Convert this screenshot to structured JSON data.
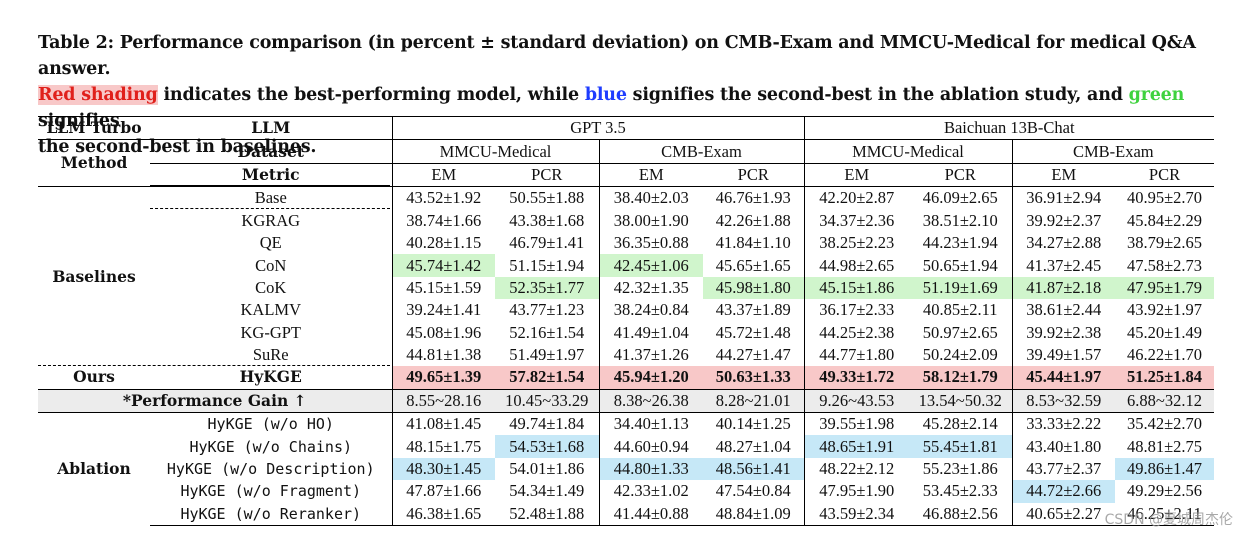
{
  "caption": {
    "line1": "Table 2: Performance comparison (in percent ± standard deviation) on CMB-Exam and MMCU-Medical for medical Q&A answer.",
    "red_word": "Red shading",
    "line2a": " indicates the best-performing model, while ",
    "blue_word": "blue",
    "line2b": " signifies the second-best in the ablation study, and ",
    "green_word": "green",
    "line2c": " signifies",
    "line3": "the second-best in baselines."
  },
  "header": {
    "llm_turbo": "LLM Turbo",
    "llm": "LLM",
    "gpt": "GPT 3.5",
    "baichuan": "Baichuan 13B-Chat",
    "method": "Method",
    "dataset": "Dataset",
    "metric": "Metric",
    "mmcu": "MMCU-Medical",
    "cmb": "CMB-Exam",
    "em": "EM",
    "pcr": "PCR"
  },
  "groups": {
    "baselines": "Baselines",
    "ours": "Ours",
    "gain": "*Performance Gain ↑",
    "ablation": "Ablation"
  },
  "rows": {
    "base": {
      "name": "Base",
      "v": [
        "43.52±1.92",
        "50.55±1.88",
        "38.40±2.03",
        "46.76±1.93",
        "42.20±2.87",
        "46.09±2.65",
        "36.91±2.94",
        "40.95±2.70"
      ]
    },
    "kgrag": {
      "name": "KGRAG",
      "v": [
        "38.74±1.66",
        "43.38±1.68",
        "38.00±1.90",
        "42.26±1.88",
        "34.37±2.36",
        "38.51±2.10",
        "39.92±2.37",
        "45.84±2.29"
      ]
    },
    "qe": {
      "name": "QE",
      "v": [
        "40.28±1.15",
        "46.79±1.41",
        "36.35±0.88",
        "41.84±1.10",
        "38.25±2.23",
        "44.23±1.94",
        "34.27±2.88",
        "38.79±2.65"
      ]
    },
    "con": {
      "name": "CoN",
      "v": [
        "45.74±1.42",
        "51.15±1.94",
        "42.45±1.06",
        "45.65±1.65",
        "44.98±2.65",
        "50.65±1.94",
        "41.37±2.45",
        "47.58±2.73"
      ]
    },
    "cok": {
      "name": "CoK",
      "v": [
        "45.15±1.59",
        "52.35±1.77",
        "42.32±1.35",
        "45.98±1.80",
        "45.15±1.86",
        "51.19±1.69",
        "41.87±2.18",
        "47.95±1.79"
      ]
    },
    "kalmv": {
      "name": "KALMV",
      "v": [
        "39.24±1.41",
        "43.77±1.23",
        "38.24±0.84",
        "43.37±1.89",
        "36.17±2.33",
        "40.85±2.11",
        "38.61±2.44",
        "43.92±1.97"
      ]
    },
    "kggpt": {
      "name": "KG-GPT",
      "v": [
        "45.08±1.96",
        "52.16±1.54",
        "41.49±1.04",
        "45.72±1.48",
        "44.25±2.38",
        "50.97±2.65",
        "39.92±2.38",
        "45.20±1.49"
      ]
    },
    "sure": {
      "name": "SuRe",
      "v": [
        "44.81±1.38",
        "51.49±1.97",
        "41.37±1.26",
        "44.27±1.47",
        "44.77±1.80",
        "50.24±2.09",
        "39.49±1.57",
        "46.22±1.70"
      ]
    },
    "hykge": {
      "name": "HyKGE",
      "v": [
        "49.65±1.39",
        "57.82±1.54",
        "45.94±1.20",
        "50.63±1.33",
        "49.33±1.72",
        "58.12±1.79",
        "45.44±1.97",
        "51.25±1.84"
      ]
    },
    "gain": {
      "v": [
        "8.55~28.16",
        "10.45~33.29",
        "8.38~26.38",
        "8.28~21.01",
        "9.26~43.53",
        "13.54~50.32",
        "8.53~32.59",
        "6.88~32.12"
      ]
    },
    "ab1": {
      "name": "HyKGE (w/o HO)",
      "v": [
        "41.08±1.45",
        "49.74±1.84",
        "34.40±1.13",
        "40.14±1.25",
        "39.55±1.98",
        "45.28±2.14",
        "33.33±2.22",
        "35.42±2.70"
      ]
    },
    "ab2": {
      "name": "HyKGE (w/o Chains)",
      "v": [
        "48.15±1.75",
        "54.53±1.68",
        "44.60±0.94",
        "48.27±1.04",
        "48.65±1.91",
        "55.45±1.81",
        "43.40±1.80",
        "48.81±2.75"
      ]
    },
    "ab3": {
      "name": "HyKGE (w/o Description)",
      "v": [
        "48.30±1.45",
        "54.01±1.86",
        "44.80±1.33",
        "48.56±1.41",
        "48.22±2.12",
        "55.23±1.86",
        "43.77±2.37",
        "49.86±1.47"
      ]
    },
    "ab4": {
      "name": "HyKGE (w/o Fragment)",
      "v": [
        "47.87±1.66",
        "54.34±1.49",
        "42.33±1.02",
        "47.54±0.84",
        "47.95±1.90",
        "53.45±2.33",
        "44.72±2.66",
        "49.29±2.56"
      ]
    },
    "ab5": {
      "name": "HyKGE (w/o Reranker)",
      "v": [
        "46.38±1.65",
        "52.48±1.88",
        "41.44±0.88",
        "48.84±1.09",
        "43.59±2.34",
        "46.88±2.56",
        "40.65±2.27",
        "46.25±2.11"
      ]
    }
  },
  "watermark": "CSDN @夏城周杰伦",
  "colors": {
    "red_shade": "#f8c8c8",
    "blue_shade": "#c6e8f7",
    "green_shade": "#d0f5cc"
  }
}
